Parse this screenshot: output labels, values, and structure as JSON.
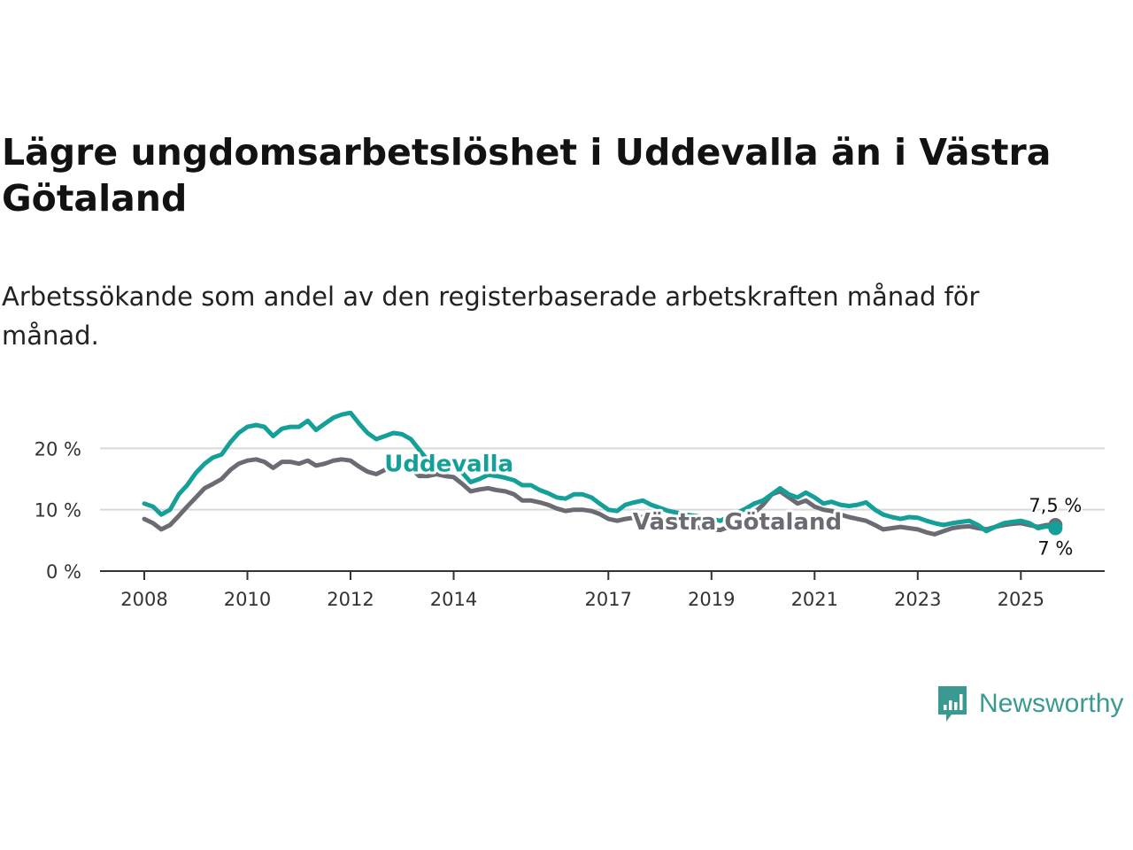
{
  "title": "Lägre ungdomsarbetslöshet i Uddevalla än i Västra Götaland",
  "subtitle": "Arbetssökande som andel av den registerbaserade arbetskraften månad för månad.",
  "brand": {
    "name": "Newsworthy",
    "icon": "newsworthy-logo-icon",
    "color": "#3a9a91"
  },
  "chart_data": {
    "type": "line",
    "title": "Lägre ungdomsarbetslöshet i Uddevalla än i Västra Götaland",
    "xlabel": "",
    "ylabel": "",
    "xlim": [
      2008,
      2025.75
    ],
    "ylim": [
      0,
      25
    ],
    "y_ticks": [
      0,
      10,
      20
    ],
    "y_tick_labels": [
      "0 %",
      "10 %",
      "20 %"
    ],
    "x_ticks": [
      2008,
      2010,
      2012,
      2014,
      2017,
      2019,
      2021,
      2023,
      2025
    ],
    "x_tick_labels": [
      "2008",
      "2010",
      "2012",
      "2014",
      "2017",
      "2019",
      "2021",
      "2023",
      "2025"
    ],
    "grid": true,
    "series": [
      {
        "name": "Uddevalla",
        "color": "#14a098",
        "last_label": "7 %",
        "points": [
          [
            2008.0,
            11.0
          ],
          [
            2008.17,
            10.5
          ],
          [
            2008.33,
            9.2
          ],
          [
            2008.5,
            10.0
          ],
          [
            2008.67,
            12.5
          ],
          [
            2008.83,
            14.0
          ],
          [
            2009.0,
            16.0
          ],
          [
            2009.17,
            17.5
          ],
          [
            2009.33,
            18.5
          ],
          [
            2009.5,
            19.0
          ],
          [
            2009.67,
            21.0
          ],
          [
            2009.83,
            22.5
          ],
          [
            2010.0,
            23.5
          ],
          [
            2010.17,
            23.8
          ],
          [
            2010.33,
            23.5
          ],
          [
            2010.5,
            22.0
          ],
          [
            2010.67,
            23.2
          ],
          [
            2010.83,
            23.5
          ],
          [
            2011.0,
            23.5
          ],
          [
            2011.17,
            24.5
          ],
          [
            2011.33,
            23.0
          ],
          [
            2011.5,
            24.0
          ],
          [
            2011.67,
            25.0
          ],
          [
            2011.83,
            25.5
          ],
          [
            2012.0,
            25.8
          ],
          [
            2012.17,
            24.0
          ],
          [
            2012.33,
            22.5
          ],
          [
            2012.5,
            21.5
          ],
          [
            2012.67,
            22.0
          ],
          [
            2012.83,
            22.5
          ],
          [
            2013.0,
            22.3
          ],
          [
            2013.17,
            21.5
          ],
          [
            2013.33,
            19.8
          ],
          [
            2013.5,
            18.0
          ],
          [
            2013.67,
            17.5
          ],
          [
            2013.83,
            17.0
          ],
          [
            2014.0,
            17.5
          ],
          [
            2014.17,
            16.0
          ],
          [
            2014.33,
            14.5
          ],
          [
            2014.5,
            15.0
          ],
          [
            2014.67,
            15.7
          ],
          [
            2014.83,
            15.5
          ],
          [
            2015.0,
            15.2
          ],
          [
            2015.17,
            14.8
          ],
          [
            2015.33,
            14.0
          ],
          [
            2015.5,
            14.0
          ],
          [
            2015.67,
            13.2
          ],
          [
            2015.83,
            12.7
          ],
          [
            2016.0,
            12.0
          ],
          [
            2016.17,
            11.8
          ],
          [
            2016.33,
            12.5
          ],
          [
            2016.5,
            12.5
          ],
          [
            2016.67,
            12.0
          ],
          [
            2016.83,
            11.0
          ],
          [
            2017.0,
            10.0
          ],
          [
            2017.17,
            9.8
          ],
          [
            2017.33,
            10.8
          ],
          [
            2017.5,
            11.2
          ],
          [
            2017.67,
            11.5
          ],
          [
            2017.83,
            10.8
          ],
          [
            2018.0,
            10.3
          ],
          [
            2018.17,
            9.8
          ],
          [
            2018.33,
            9.5
          ],
          [
            2018.5,
            9.2
          ],
          [
            2018.67,
            9.0
          ],
          [
            2018.83,
            8.8
          ],
          [
            2019.0,
            8.5
          ],
          [
            2019.17,
            8.2
          ],
          [
            2019.33,
            8.8
          ],
          [
            2019.5,
            9.5
          ],
          [
            2019.67,
            10.2
          ],
          [
            2019.83,
            11.0
          ],
          [
            2020.0,
            11.5
          ],
          [
            2020.17,
            12.5
          ],
          [
            2020.33,
            13.5
          ],
          [
            2020.5,
            12.5
          ],
          [
            2020.67,
            12.0
          ],
          [
            2020.83,
            12.8
          ],
          [
            2021.0,
            12.0
          ],
          [
            2021.17,
            11.0
          ],
          [
            2021.33,
            11.3
          ],
          [
            2021.5,
            10.8
          ],
          [
            2021.67,
            10.6
          ],
          [
            2021.83,
            10.8
          ],
          [
            2022.0,
            11.2
          ],
          [
            2022.17,
            10.0
          ],
          [
            2022.33,
            9.2
          ],
          [
            2022.5,
            8.8
          ],
          [
            2022.67,
            8.5
          ],
          [
            2022.83,
            8.8
          ],
          [
            2023.0,
            8.7
          ],
          [
            2023.17,
            8.2
          ],
          [
            2023.33,
            7.8
          ],
          [
            2023.5,
            7.5
          ],
          [
            2023.67,
            7.8
          ],
          [
            2023.83,
            8.0
          ],
          [
            2024.0,
            8.2
          ],
          [
            2024.17,
            7.5
          ],
          [
            2024.33,
            6.5
          ],
          [
            2024.5,
            7.2
          ],
          [
            2024.67,
            7.8
          ],
          [
            2024.83,
            8.0
          ],
          [
            2025.0,
            8.2
          ],
          [
            2025.17,
            7.8
          ],
          [
            2025.33,
            7.0
          ],
          [
            2025.5,
            7.3
          ],
          [
            2025.67,
            7.0
          ]
        ]
      },
      {
        "name": "Västra Götaland",
        "color": "#6b6b73",
        "last_label": "7,5 %",
        "points": [
          [
            2008.0,
            8.5
          ],
          [
            2008.17,
            7.8
          ],
          [
            2008.33,
            6.8
          ],
          [
            2008.5,
            7.5
          ],
          [
            2008.67,
            9.0
          ],
          [
            2008.83,
            10.5
          ],
          [
            2009.0,
            12.0
          ],
          [
            2009.17,
            13.5
          ],
          [
            2009.33,
            14.2
          ],
          [
            2009.5,
            15.0
          ],
          [
            2009.67,
            16.5
          ],
          [
            2009.83,
            17.5
          ],
          [
            2010.0,
            18.0
          ],
          [
            2010.17,
            18.2
          ],
          [
            2010.33,
            17.8
          ],
          [
            2010.5,
            16.8
          ],
          [
            2010.67,
            17.8
          ],
          [
            2010.83,
            17.8
          ],
          [
            2011.0,
            17.5
          ],
          [
            2011.17,
            18.0
          ],
          [
            2011.33,
            17.2
          ],
          [
            2011.5,
            17.5
          ],
          [
            2011.67,
            18.0
          ],
          [
            2011.83,
            18.2
          ],
          [
            2012.0,
            18.0
          ],
          [
            2012.17,
            17.0
          ],
          [
            2012.33,
            16.2
          ],
          [
            2012.5,
            15.8
          ],
          [
            2012.67,
            16.5
          ],
          [
            2012.83,
            17.0
          ],
          [
            2013.0,
            17.2
          ],
          [
            2013.17,
            16.8
          ],
          [
            2013.33,
            15.5
          ],
          [
            2013.5,
            15.5
          ],
          [
            2013.67,
            15.8
          ],
          [
            2013.83,
            15.5
          ],
          [
            2014.0,
            15.3
          ],
          [
            2014.17,
            14.2
          ],
          [
            2014.33,
            13.0
          ],
          [
            2014.5,
            13.3
          ],
          [
            2014.67,
            13.5
          ],
          [
            2014.83,
            13.2
          ],
          [
            2015.0,
            13.0
          ],
          [
            2015.17,
            12.5
          ],
          [
            2015.33,
            11.5
          ],
          [
            2015.5,
            11.5
          ],
          [
            2015.67,
            11.2
          ],
          [
            2015.83,
            10.8
          ],
          [
            2016.0,
            10.2
          ],
          [
            2016.17,
            9.8
          ],
          [
            2016.33,
            10.0
          ],
          [
            2016.5,
            10.0
          ],
          [
            2016.67,
            9.8
          ],
          [
            2016.83,
            9.3
          ],
          [
            2017.0,
            8.5
          ],
          [
            2017.17,
            8.2
          ],
          [
            2017.33,
            8.5
          ],
          [
            2017.5,
            8.7
          ],
          [
            2017.67,
            8.8
          ],
          [
            2017.83,
            8.5
          ],
          [
            2018.0,
            8.0
          ],
          [
            2018.17,
            7.8
          ],
          [
            2018.33,
            7.5
          ],
          [
            2018.5,
            7.3
          ],
          [
            2018.67,
            7.2
          ],
          [
            2018.83,
            7.0
          ],
          [
            2019.0,
            6.8
          ],
          [
            2019.17,
            6.7
          ],
          [
            2019.33,
            7.2
          ],
          [
            2019.5,
            7.8
          ],
          [
            2019.67,
            8.5
          ],
          [
            2019.83,
            9.5
          ],
          [
            2020.0,
            10.8
          ],
          [
            2020.17,
            12.5
          ],
          [
            2020.33,
            13.0
          ],
          [
            2020.5,
            12.0
          ],
          [
            2020.67,
            11.0
          ],
          [
            2020.83,
            11.5
          ],
          [
            2021.0,
            10.5
          ],
          [
            2021.17,
            10.0
          ],
          [
            2021.33,
            9.8
          ],
          [
            2021.5,
            9.2
          ],
          [
            2021.67,
            8.8
          ],
          [
            2021.83,
            8.5
          ],
          [
            2022.0,
            8.2
          ],
          [
            2022.17,
            7.5
          ],
          [
            2022.33,
            6.8
          ],
          [
            2022.5,
            7.0
          ],
          [
            2022.67,
            7.2
          ],
          [
            2022.83,
            7.0
          ],
          [
            2023.0,
            6.8
          ],
          [
            2023.17,
            6.3
          ],
          [
            2023.33,
            6.0
          ],
          [
            2023.5,
            6.5
          ],
          [
            2023.67,
            7.0
          ],
          [
            2023.83,
            7.2
          ],
          [
            2024.0,
            7.3
          ],
          [
            2024.17,
            7.0
          ],
          [
            2024.33,
            6.8
          ],
          [
            2024.5,
            7.2
          ],
          [
            2024.67,
            7.5
          ],
          [
            2024.83,
            7.7
          ],
          [
            2025.0,
            7.8
          ],
          [
            2025.17,
            7.5
          ],
          [
            2025.33,
            7.2
          ],
          [
            2025.5,
            7.5
          ],
          [
            2025.67,
            7.5
          ]
        ]
      }
    ],
    "annotations": [
      {
        "text": "Uddevalla",
        "series": "Uddevalla",
        "at_x": 2013.0,
        "at_y": 17.7
      },
      {
        "text": "Västra Götaland",
        "series": "Västra Götaland",
        "at_x": 2019.5,
        "at_y": 8.2
      }
    ]
  }
}
